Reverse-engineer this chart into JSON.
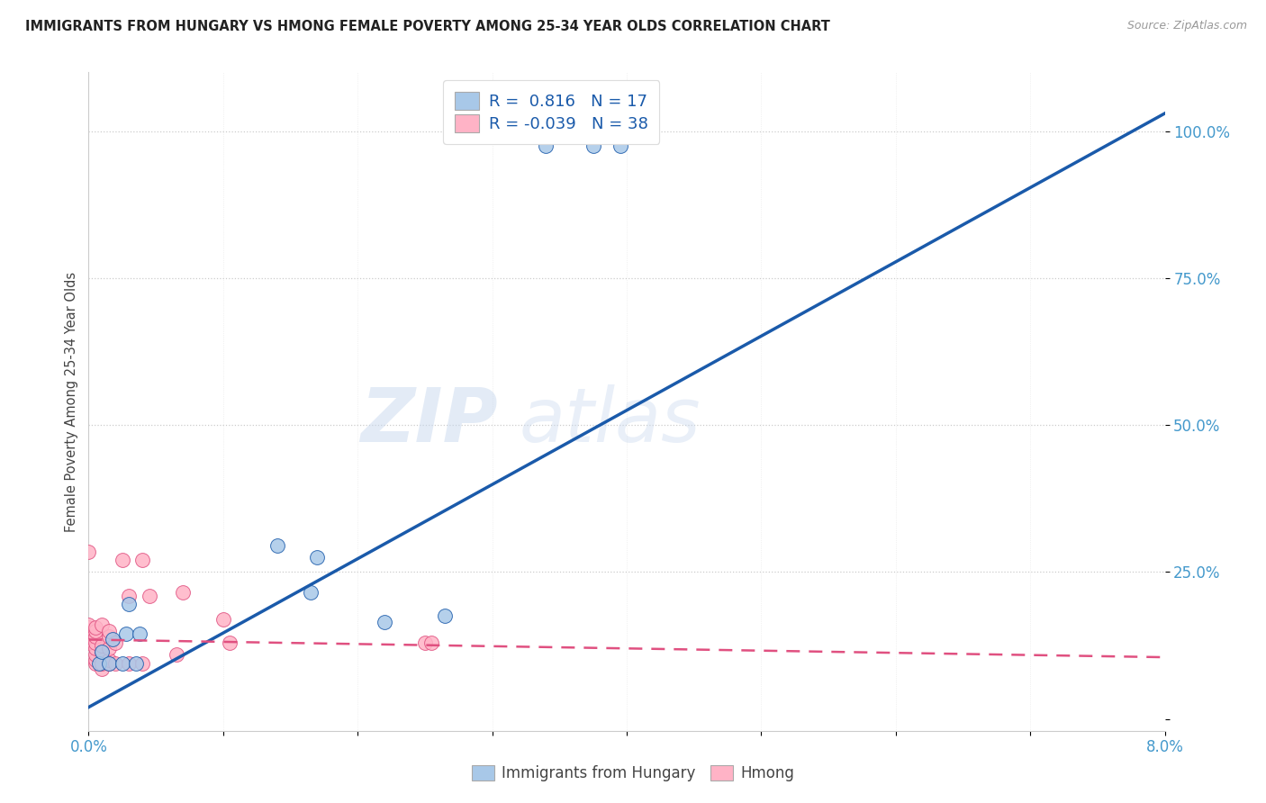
{
  "title": "IMMIGRANTS FROM HUNGARY VS HMONG FEMALE POVERTY AMONG 25-34 YEAR OLDS CORRELATION CHART",
  "source": "Source: ZipAtlas.com",
  "ylabel": "Female Poverty Among 25-34 Year Olds",
  "xlim": [
    0.0,
    0.08
  ],
  "ylim": [
    -0.02,
    1.1
  ],
  "y_ticks": [
    0.0,
    0.25,
    0.5,
    0.75,
    1.0
  ],
  "y_tick_labels": [
    "",
    "25.0%",
    "50.0%",
    "75.0%",
    "100.0%"
  ],
  "hungary_color": "#A8C8E8",
  "hmong_color": "#FFB3C6",
  "hungary_line_color": "#1A5AAA",
  "hmong_line_color": "#E05080",
  "hungary_R": 0.816,
  "hungary_N": 17,
  "hmong_R": -0.039,
  "hmong_N": 38,
  "watermark_zip": "ZIP",
  "watermark_atlas": "atlas",
  "background_color": "#ffffff",
  "grid_color": "#cccccc",
  "hungary_x": [
    0.0008,
    0.001,
    0.0015,
    0.0018,
    0.0025,
    0.0028,
    0.003,
    0.0035,
    0.0038,
    0.014,
    0.0165,
    0.017,
    0.022,
    0.0265,
    0.034,
    0.0375,
    0.0395
  ],
  "hungary_y": [
    0.095,
    0.115,
    0.095,
    0.135,
    0.095,
    0.145,
    0.195,
    0.095,
    0.145,
    0.295,
    0.215,
    0.275,
    0.165,
    0.175,
    0.975,
    0.975,
    0.975
  ],
  "hmong_x": [
    0.0,
    0.0,
    0.0,
    0.0,
    0.0,
    0.0,
    0.0005,
    0.0005,
    0.0005,
    0.0005,
    0.0005,
    0.0005,
    0.0005,
    0.0005,
    0.001,
    0.001,
    0.001,
    0.001,
    0.001,
    0.0015,
    0.0015,
    0.0015,
    0.0015,
    0.0015,
    0.002,
    0.002,
    0.0025,
    0.003,
    0.003,
    0.004,
    0.004,
    0.0045,
    0.0065,
    0.007,
    0.01,
    0.0105,
    0.025,
    0.0255
  ],
  "hmong_y": [
    0.13,
    0.14,
    0.15,
    0.155,
    0.16,
    0.285,
    0.095,
    0.1,
    0.11,
    0.12,
    0.13,
    0.14,
    0.15,
    0.155,
    0.085,
    0.095,
    0.115,
    0.125,
    0.16,
    0.095,
    0.1,
    0.12,
    0.14,
    0.15,
    0.095,
    0.13,
    0.27,
    0.095,
    0.21,
    0.095,
    0.27,
    0.21,
    0.11,
    0.215,
    0.17,
    0.13,
    0.13,
    0.13
  ],
  "hungary_line_x": [
    0.0,
    0.08
  ],
  "hungary_line_y": [
    0.02,
    1.03
  ],
  "hmong_line_x": [
    0.0,
    0.08
  ],
  "hmong_line_y": [
    0.135,
    0.105
  ]
}
